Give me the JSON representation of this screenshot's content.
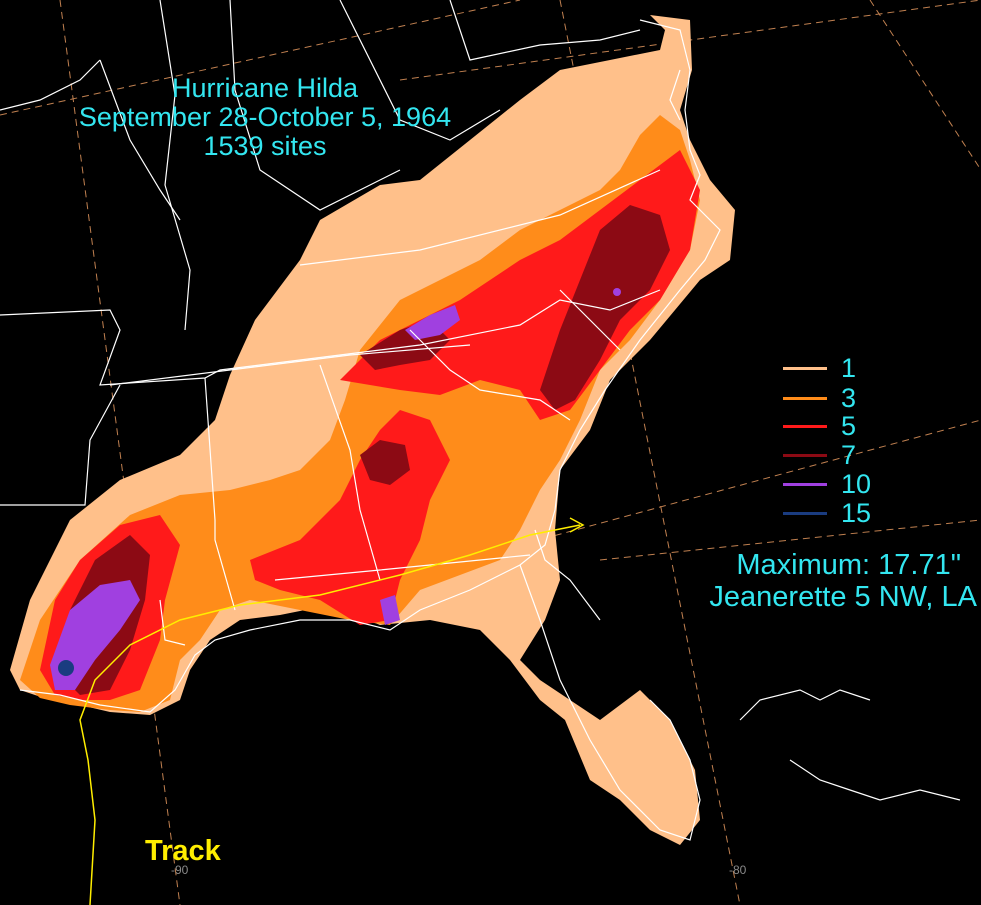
{
  "title": {
    "line1": "Hurricane Hilda",
    "line2": "September 28-October 5, 1964",
    "line3": "1539 sites"
  },
  "legend": [
    {
      "label": "1",
      "color": "#ffc08a"
    },
    {
      "label": "3",
      "color": "#ff8c1a"
    },
    {
      "label": "5",
      "color": "#ff1a1a"
    },
    {
      "label": "7",
      "color": "#8c0a14"
    },
    {
      "label": "10",
      "color": "#a040e0"
    },
    {
      "label": "15",
      "color": "#1a3c80"
    }
  ],
  "maximum": {
    "line1": "Maximum:  17.71\"",
    "line2": "Jeanerette 5 NW, LA"
  },
  "track_label": "Track",
  "longitude_labels": [
    "-90",
    "-80"
  ],
  "colors": {
    "background": "#000000",
    "text": "#33e6f0",
    "track": "#ffee00",
    "borders": "#ffffff",
    "graticule": "#c08050"
  }
}
